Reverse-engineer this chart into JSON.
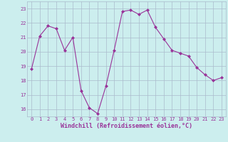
{
  "x": [
    0,
    1,
    2,
    3,
    4,
    5,
    6,
    7,
    8,
    9,
    10,
    11,
    12,
    13,
    14,
    15,
    16,
    17,
    18,
    19,
    20,
    21,
    22,
    23
  ],
  "y": [
    18.8,
    21.1,
    21.8,
    21.6,
    20.1,
    21.0,
    17.3,
    16.1,
    15.7,
    17.6,
    20.1,
    22.8,
    22.9,
    22.6,
    22.9,
    21.7,
    20.9,
    20.1,
    19.9,
    19.7,
    18.9,
    18.4,
    18.0,
    18.2
  ],
  "line_color": "#993399",
  "marker": "D",
  "marker_size": 2,
  "bg_color": "#cceeee",
  "grid_color": "#aabbcc",
  "xlabel": "Windchill (Refroidissement éolien,°C)",
  "xlabel_color": "#993399",
  "tick_color": "#993399",
  "ylim": [
    15.5,
    23.5
  ],
  "yticks": [
    16,
    17,
    18,
    19,
    20,
    21,
    22,
    23
  ],
  "xticks": [
    0,
    1,
    2,
    3,
    4,
    5,
    6,
    7,
    8,
    9,
    10,
    11,
    12,
    13,
    14,
    15,
    16,
    17,
    18,
    19,
    20,
    21,
    22,
    23
  ]
}
